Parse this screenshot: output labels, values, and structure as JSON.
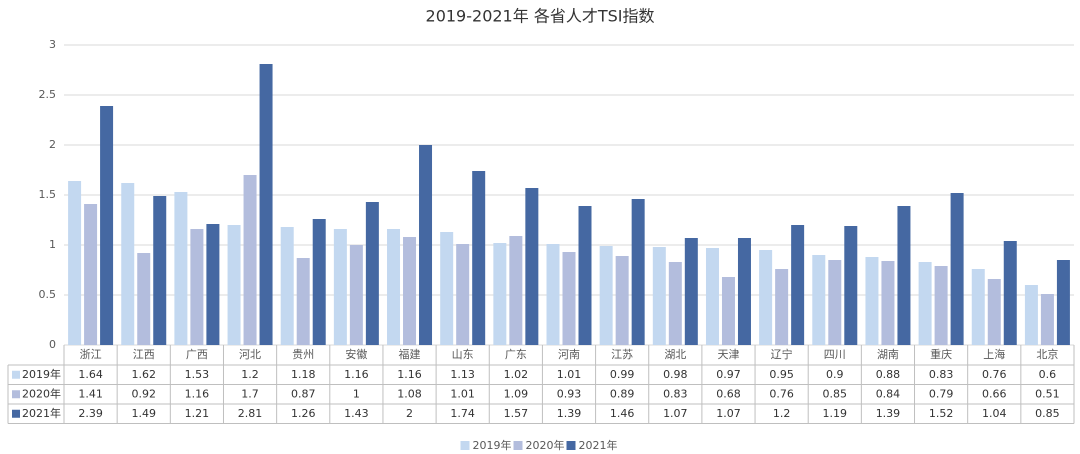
{
  "chart_data": {
    "type": "bar",
    "title": "2019-2021年 各省人才TSI指数",
    "categories": [
      "浙江",
      "江西",
      "广西",
      "河北",
      "贵州",
      "安徽",
      "福建",
      "山东",
      "广东",
      "河南",
      "江苏",
      "湖北",
      "天津",
      "辽宁",
      "四川",
      "湖南",
      "重庆",
      "上海",
      "北京"
    ],
    "series": [
      {
        "name": "2019年",
        "color": "#c3d8f0",
        "values": [
          1.64,
          1.62,
          1.53,
          1.2,
          1.18,
          1.16,
          1.16,
          1.13,
          1.02,
          1.01,
          0.99,
          0.98,
          0.97,
          0.95,
          0.9,
          0.88,
          0.83,
          0.76,
          0.6
        ]
      },
      {
        "name": "2020年",
        "color": "#b3bddd",
        "values": [
          1.41,
          0.92,
          1.16,
          1.7,
          0.87,
          1,
          1.08,
          1.01,
          1.09,
          0.93,
          0.89,
          0.83,
          0.68,
          0.76,
          0.85,
          0.84,
          0.79,
          0.66,
          0.51
        ]
      },
      {
        "name": "2021年",
        "color": "#4568a2",
        "values": [
          2.39,
          1.49,
          1.21,
          2.81,
          1.26,
          1.43,
          2,
          1.74,
          1.57,
          1.39,
          1.46,
          1.07,
          1.07,
          1.2,
          1.19,
          1.39,
          1.52,
          1.04,
          0.85
        ]
      }
    ],
    "ylim": [
      0,
      3
    ],
    "yticks": [
      0,
      0.5,
      1,
      1.5,
      2,
      2.5,
      3
    ],
    "grid": true
  }
}
